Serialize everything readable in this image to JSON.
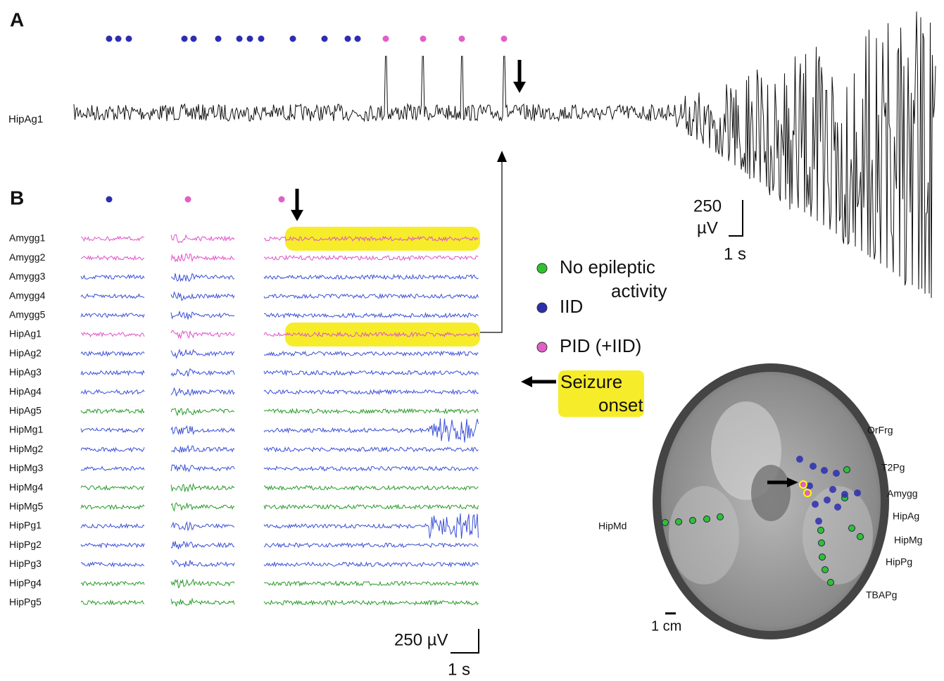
{
  "panel_a": {
    "label": "A",
    "channel": "HipAg1",
    "scale_voltage": "250",
    "scale_unit": "µV",
    "scale_time": "1 s"
  },
  "panel_b": {
    "label": "B",
    "channels": [
      {
        "name": "Amygg1",
        "color": "#e052c8"
      },
      {
        "name": "Amygg2",
        "color": "#e052c8"
      },
      {
        "name": "Amygg3",
        "color": "#3a4fd8"
      },
      {
        "name": "Amygg4",
        "color": "#3a4fd8"
      },
      {
        "name": "Amygg5",
        "color": "#3a4fd8"
      },
      {
        "name": "HipAg1",
        "color": "#e052c8"
      },
      {
        "name": "HipAg2",
        "color": "#3a4fd8"
      },
      {
        "name": "HipAg3",
        "color": "#3a4fd8"
      },
      {
        "name": "HipAg4",
        "color": "#3a4fd8"
      },
      {
        "name": "HipAg5",
        "color": "#2a9a2a"
      },
      {
        "name": "HipMg1",
        "color": "#3a4fd8"
      },
      {
        "name": "HipMg2",
        "color": "#3a4fd8"
      },
      {
        "name": "HipMg3",
        "color": "#3a4fd8"
      },
      {
        "name": "HipMg4",
        "color": "#2a9a2a"
      },
      {
        "name": "HipMg5",
        "color": "#2a9a2a"
      },
      {
        "name": "HipPg1",
        "color": "#3a4fd8"
      },
      {
        "name": "HipPg2",
        "color": "#3a4fd8"
      },
      {
        "name": "HipPg3",
        "color": "#3a4fd8"
      },
      {
        "name": "HipPg4",
        "color": "#2a9a2a"
      },
      {
        "name": "HipPg5",
        "color": "#2a9a2a"
      }
    ],
    "scale_voltage": "250 µV",
    "scale_time": "1 s"
  },
  "legend": [
    {
      "lines": [
        "No epileptic",
        "activity"
      ],
      "color": "#2fc22f"
    },
    {
      "lines": [
        "IID"
      ],
      "color": "#2d2db0"
    },
    {
      "lines": [
        "PID (+IID)"
      ],
      "color": "#e060c8"
    }
  ],
  "seizure_onset": [
    "Seizure",
    "onset"
  ],
  "brain": {
    "labels": [
      "OrFrg",
      "T2Pg",
      "Amygg",
      "HipAg",
      "HipMg",
      "HipPg",
      "TBAPg",
      "HipMd"
    ],
    "scale": "1 cm"
  }
}
